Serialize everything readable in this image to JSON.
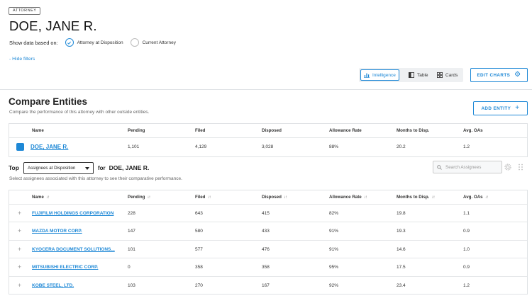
{
  "badge": "ATTORNEY",
  "title": "DOE, JANE R.",
  "basis": {
    "label": "Show data based on:",
    "options": [
      {
        "label": "Attorney at Disposition",
        "checked": true
      },
      {
        "label": "Current Attorney",
        "checked": false
      }
    ]
  },
  "hide_filters": "- Hide filters",
  "views": [
    {
      "label": "Intelligence",
      "icon": "bar-chart-icon",
      "active": true
    },
    {
      "label": "Table",
      "icon": "table-icon",
      "active": false
    },
    {
      "label": "Cards",
      "icon": "cards-icon",
      "active": false
    }
  ],
  "edit_charts": "EDIT CHARTS",
  "compare": {
    "title": "Compare Entities",
    "subtitle": "Compare the performance of this attorney with other outside entities.",
    "add_entity": "ADD ENTITY",
    "columns": [
      "Name",
      "Pending",
      "Filed",
      "Disposed",
      "Allowance Rate",
      "Months to Disp.",
      "Avg. OAs"
    ],
    "row": {
      "name": "DOE, JANE R.",
      "pending": "1,101",
      "filed": "4,129",
      "disposed": "3,028",
      "allowance": "88%",
      "months": "20.2",
      "oas": "1.2"
    }
  },
  "top": {
    "label": "Top",
    "select_value": "Assignees at Disposition",
    "for_label": "for",
    "for_name": "DOE, JANE R.",
    "subtitle": "Select assignees associated with this attorney to see their comparative performance.",
    "search_placeholder": "Search Assignees"
  },
  "assignees": {
    "columns": [
      "Name",
      "Pending",
      "Filed",
      "Disposed",
      "Allowance Rate",
      "Months to Disp.",
      "Avg. OAs"
    ],
    "rows": [
      {
        "name": "FUJIFILM HOLDINGS CORPORATION",
        "pending": "228",
        "filed": "643",
        "disposed": "415",
        "allowance": "82%",
        "months": "19.8",
        "oas": "1.1"
      },
      {
        "name": "MAZDA MOTOR CORP.",
        "pending": "147",
        "filed": "580",
        "disposed": "433",
        "allowance": "91%",
        "months": "19.3",
        "oas": "0.9"
      },
      {
        "name": "KYOCERA DOCUMENT SOLUTIONS...",
        "pending": "101",
        "filed": "577",
        "disposed": "476",
        "allowance": "91%",
        "months": "14.6",
        "oas": "1.0"
      },
      {
        "name": "MITSUBISHI ELECTRIC CORP.",
        "pending": "0",
        "filed": "358",
        "disposed": "358",
        "allowance": "95%",
        "months": "17.5",
        "oas": "0.9"
      },
      {
        "name": "KOBE STEEL, LTD.",
        "pending": "103",
        "filed": "270",
        "disposed": "167",
        "allowance": "92%",
        "months": "23.4",
        "oas": "1.2"
      }
    ]
  },
  "colors": {
    "accent": "#1e88d6",
    "border": "#dfe2e5"
  }
}
